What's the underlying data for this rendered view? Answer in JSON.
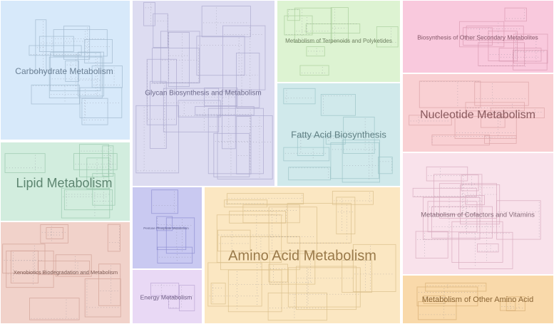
{
  "regions": [
    {
      "label": "Carbohydrate Metabolism"
    },
    {
      "label": "Glycan Biosynthesis and Metabolism"
    },
    {
      "label": "Metabolism of Terpenoids and Polyketides"
    },
    {
      "label": "Biosynthesis of Other Secondary Metabolites"
    },
    {
      "label": "Nucleotide Metabolism"
    },
    {
      "label": "Fatty Acid Biosynthesis"
    },
    {
      "label": "Lipid Metabolism"
    },
    {
      "label": "Metabolism of Cofactors and Vitamins"
    },
    {
      "label": "Pentose Phosphate Metabolism"
    },
    {
      "label": "Amino Acid Metabolism"
    },
    {
      "label": "Xenobiotics Biodegradation and Metabolism"
    },
    {
      "label": "Energy Metabolism"
    },
    {
      "label": "Metabolism of Other Amino Acid"
    }
  ]
}
